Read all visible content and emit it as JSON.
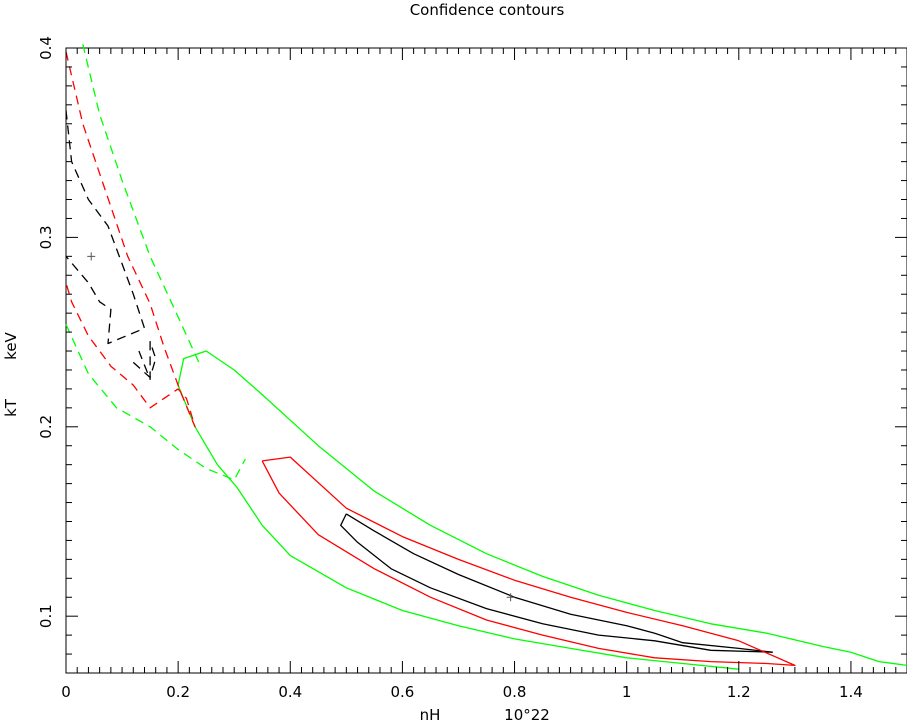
{
  "chart_data": {
    "type": "line",
    "title": "Confidence contours",
    "xlabel": "nH",
    "xunit": "10^22",
    "ylabel": "kT",
    "yunit": "keV",
    "xlim": [
      0,
      1.5
    ],
    "ylim": [
      0.07,
      0.4
    ],
    "xticks": [
      0,
      0.2,
      0.4,
      0.6,
      0.8,
      1.0,
      1.2,
      1.4
    ],
    "xtick_labels": [
      "0",
      "0.2",
      "0.4",
      "0.6",
      "0.8",
      "1",
      "1.2",
      "1.4"
    ],
    "yticks": [
      0.1,
      0.2,
      0.3,
      0.4
    ],
    "ytick_labels": [
      "0.1",
      "0.2",
      "0.3",
      "0.4"
    ],
    "grid": false,
    "colors": {
      "black": "#000000",
      "red": "#ff0000",
      "green": "#00ff00"
    },
    "best_fits": [
      {
        "x": 0.045,
        "y": 0.29
      },
      {
        "x": 0.793,
        "y": 0.11
      }
    ],
    "series": [
      {
        "color": "black",
        "dashed": false,
        "x": [
          0.5,
          0.49,
          0.52,
          0.58,
          0.65,
          0.75,
          0.85,
          0.95,
          1.05,
          1.15,
          1.26,
          1.2,
          1.1,
          1.05,
          1.0,
          0.9,
          0.8,
          0.7,
          0.62,
          0.55,
          0.5
        ],
        "y": [
          0.154,
          0.148,
          0.139,
          0.125,
          0.115,
          0.104,
          0.096,
          0.09,
          0.087,
          0.082,
          0.081,
          0.083,
          0.086,
          0.091,
          0.095,
          0.101,
          0.11,
          0.122,
          0.133,
          0.145,
          0.154
        ]
      },
      {
        "color": "red",
        "dashed": false,
        "x": [
          0.35,
          0.38,
          0.45,
          0.55,
          0.65,
          0.75,
          0.85,
          0.95,
          1.05,
          1.15,
          1.25,
          1.3,
          1.2,
          1.1,
          1.0,
          0.9,
          0.8,
          0.7,
          0.6,
          0.5,
          0.4,
          0.35
        ],
        "y": [
          0.182,
          0.165,
          0.143,
          0.125,
          0.11,
          0.098,
          0.09,
          0.083,
          0.078,
          0.076,
          0.075,
          0.074,
          0.087,
          0.095,
          0.102,
          0.11,
          0.119,
          0.13,
          0.142,
          0.157,
          0.184,
          0.182
        ]
      },
      {
        "color": "green",
        "dashed": false,
        "x": [
          0.305,
          0.27,
          0.23,
          0.2,
          0.21,
          0.25,
          0.3,
          0.35,
          0.45,
          0.55,
          0.65,
          0.75,
          0.85,
          0.95,
          1.05,
          1.15,
          1.25,
          1.35,
          1.4,
          1.45,
          1.5
        ],
        "y": [
          0.168,
          0.18,
          0.2,
          0.222,
          0.236,
          0.24,
          0.23,
          0.217,
          0.19,
          0.166,
          0.148,
          0.133,
          0.121,
          0.111,
          0.103,
          0.096,
          0.091,
          0.084,
          0.081,
          0.076,
          0.074
        ]
      },
      {
        "color": "green",
        "dashed": false,
        "x": [
          0.305,
          0.35,
          0.4,
          0.5,
          0.6,
          0.7,
          0.8,
          0.9,
          1.0,
          1.1,
          1.2
        ],
        "y": [
          0.168,
          0.148,
          0.132,
          0.115,
          0.103,
          0.095,
          0.088,
          0.083,
          0.078,
          0.075,
          0.072
        ]
      },
      {
        "color": "black",
        "dashed": true,
        "x": [
          0.0,
          0.01,
          0.04,
          0.075,
          0.1,
          0.12,
          0.14,
          0.075,
          0.08,
          0.06,
          0.04,
          0.02,
          0.0
        ],
        "y": [
          0.367,
          0.34,
          0.32,
          0.306,
          0.286,
          0.27,
          0.252,
          0.244,
          0.262,
          0.266,
          0.276,
          0.283,
          0.29
        ]
      },
      {
        "color": "black",
        "dashed": true,
        "x": [
          0.12,
          0.15,
          0.16,
          0.15,
          0.15,
          0.13
        ],
        "y": [
          0.234,
          0.226,
          0.236,
          0.245,
          0.225,
          0.24
        ]
      },
      {
        "color": "red",
        "dashed": true,
        "x": [
          0.0,
          0.03,
          0.07,
          0.11,
          0.15,
          0.175,
          0.205,
          0.23,
          0.215,
          0.2,
          0.15,
          0.12,
          0.08,
          0.04,
          0.01,
          0.0
        ],
        "y": [
          0.398,
          0.36,
          0.325,
          0.29,
          0.265,
          0.242,
          0.218,
          0.2,
          0.215,
          0.22,
          0.21,
          0.222,
          0.232,
          0.248,
          0.266,
          0.276
        ]
      },
      {
        "color": "green",
        "dashed": true,
        "x": [
          0.03,
          0.06,
          0.1,
          0.15,
          0.2,
          0.24
        ],
        "y": [
          0.402,
          0.365,
          0.33,
          0.29,
          0.258,
          0.232
        ]
      },
      {
        "color": "green",
        "dashed": true,
        "x": [
          0.0,
          0.04,
          0.09,
          0.15,
          0.2,
          0.25,
          0.3,
          0.32
        ],
        "y": [
          0.254,
          0.228,
          0.21,
          0.2,
          0.188,
          0.178,
          0.172,
          0.183
        ]
      }
    ]
  }
}
